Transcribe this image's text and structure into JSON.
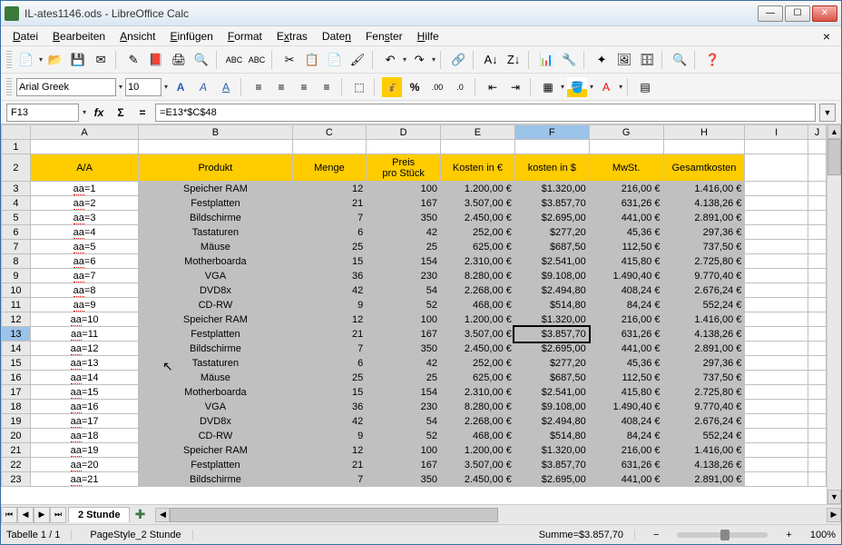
{
  "window": {
    "title": "IL-ates1146.ods - LibreOffice Calc"
  },
  "menus": [
    "Datei",
    "Bearbeiten",
    "Ansicht",
    "Einfügen",
    "Format",
    "Extras",
    "Daten",
    "Fenster",
    "Hilfe"
  ],
  "format": {
    "font": "Arial Greek",
    "size": "10"
  },
  "formula": {
    "cellref": "F13",
    "content": "=E13*$C$48"
  },
  "columns": {
    "labels": [
      "A",
      "B",
      "C",
      "D",
      "E",
      "F",
      "G",
      "H",
      "I",
      "J"
    ],
    "widths": [
      120,
      170,
      82,
      82,
      82,
      82,
      82,
      90,
      70,
      20
    ],
    "selected": "F"
  },
  "header_row": {
    "aa": "A/A",
    "produkt": "Produkt",
    "menge": "Menge",
    "preis1": "Preis",
    "preis2": "pro Stück",
    "kosten_eur": "Kosten in €",
    "kosten_usd": "kosten in $",
    "mwst": "MwSt.",
    "gesamt": "Gesamtkosten"
  },
  "selected_row": 13,
  "rows": [
    {
      "n": 3,
      "aa": "aa=1",
      "p": "Speicher RAM",
      "m": "12",
      "pp": "100",
      "ke": "1.200,00 €",
      "ku": "$1.320,00",
      "mw": "216,00 €",
      "g": "1.416,00 €"
    },
    {
      "n": 4,
      "aa": "aa=2",
      "p": "Festplatten",
      "m": "21",
      "pp": "167",
      "ke": "3.507,00 €",
      "ku": "$3.857,70",
      "mw": "631,26 €",
      "g": "4.138,26 €"
    },
    {
      "n": 5,
      "aa": "aa=3",
      "p": "Bildschirme",
      "m": "7",
      "pp": "350",
      "ke": "2.450,00 €",
      "ku": "$2.695,00",
      "mw": "441,00 €",
      "g": "2.891,00 €"
    },
    {
      "n": 6,
      "aa": "aa=4",
      "p": "Tastaturen",
      "m": "6",
      "pp": "42",
      "ke": "252,00 €",
      "ku": "$277,20",
      "mw": "45,36 €",
      "g": "297,36 €"
    },
    {
      "n": 7,
      "aa": "aa=5",
      "p": "Mäuse",
      "m": "25",
      "pp": "25",
      "ke": "625,00 €",
      "ku": "$687,50",
      "mw": "112,50 €",
      "g": "737,50 €"
    },
    {
      "n": 8,
      "aa": "aa=6",
      "p": "Motherboarda",
      "m": "15",
      "pp": "154",
      "ke": "2.310,00 €",
      "ku": "$2.541,00",
      "mw": "415,80 €",
      "g": "2.725,80 €"
    },
    {
      "n": 9,
      "aa": "aa=7",
      "p": "VGA",
      "m": "36",
      "pp": "230",
      "ke": "8.280,00 €",
      "ku": "$9.108,00",
      "mw": "1.490,40 €",
      "g": "9.770,40 €"
    },
    {
      "n": 10,
      "aa": "aa=8",
      "p": "DVD8x",
      "m": "42",
      "pp": "54",
      "ke": "2.268,00 €",
      "ku": "$2.494,80",
      "mw": "408,24 €",
      "g": "2.676,24 €"
    },
    {
      "n": 11,
      "aa": "aa=9",
      "p": "CD-RW",
      "m": "9",
      "pp": "52",
      "ke": "468,00 €",
      "ku": "$514,80",
      "mw": "84,24 €",
      "g": "552,24 €"
    },
    {
      "n": 12,
      "aa": "aa=10",
      "p": "Speicher RAM",
      "m": "12",
      "pp": "100",
      "ke": "1.200,00 €",
      "ku": "$1.320,00",
      "mw": "216,00 €",
      "g": "1.416,00 €"
    },
    {
      "n": 13,
      "aa": "aa=11",
      "p": "Festplatten",
      "m": "21",
      "pp": "167",
      "ke": "3.507,00 €",
      "ku": "$3.857,70",
      "mw": "631,26 €",
      "g": "4.138,26 €"
    },
    {
      "n": 14,
      "aa": "aa=12",
      "p": "Bildschirme",
      "m": "7",
      "pp": "350",
      "ke": "2.450,00 €",
      "ku": "$2.695,00",
      "mw": "441,00 €",
      "g": "2.891,00 €"
    },
    {
      "n": 15,
      "aa": "aa=13",
      "p": "Tastaturen",
      "m": "6",
      "pp": "42",
      "ke": "252,00 €",
      "ku": "$277,20",
      "mw": "45,36 €",
      "g": "297,36 €"
    },
    {
      "n": 16,
      "aa": "aa=14",
      "p": "Mäuse",
      "m": "25",
      "pp": "25",
      "ke": "625,00 €",
      "ku": "$687,50",
      "mw": "112,50 €",
      "g": "737,50 €"
    },
    {
      "n": 17,
      "aa": "aa=15",
      "p": "Motherboarda",
      "m": "15",
      "pp": "154",
      "ke": "2.310,00 €",
      "ku": "$2.541,00",
      "mw": "415,80 €",
      "g": "2.725,80 €"
    },
    {
      "n": 18,
      "aa": "aa=16",
      "p": "VGA",
      "m": "36",
      "pp": "230",
      "ke": "8.280,00 €",
      "ku": "$9.108,00",
      "mw": "1.490,40 €",
      "g": "9.770,40 €"
    },
    {
      "n": 19,
      "aa": "aa=17",
      "p": "DVD8x",
      "m": "42",
      "pp": "54",
      "ke": "2.268,00 €",
      "ku": "$2.494,80",
      "mw": "408,24 €",
      "g": "2.676,24 €"
    },
    {
      "n": 20,
      "aa": "aa=18",
      "p": "CD-RW",
      "m": "9",
      "pp": "52",
      "ke": "468,00 €",
      "ku": "$514,80",
      "mw": "84,24 €",
      "g": "552,24 €"
    },
    {
      "n": 21,
      "aa": "aa=19",
      "p": "Speicher RAM",
      "m": "12",
      "pp": "100",
      "ke": "1.200,00 €",
      "ku": "$1.320,00",
      "mw": "216,00 €",
      "g": "1.416,00 €"
    },
    {
      "n": 22,
      "aa": "aa=20",
      "p": "Festplatten",
      "m": "21",
      "pp": "167",
      "ke": "3.507,00 €",
      "ku": "$3.857,70",
      "mw": "631,26 €",
      "g": "4.138,26 €"
    },
    {
      "n": 23,
      "aa": "aa=21",
      "p": "Bildschirme",
      "m": "7",
      "pp": "350",
      "ke": "2.450,00 €",
      "ku": "$2.695,00",
      "mw": "441,00 €",
      "g": "2.891,00 €"
    }
  ],
  "tabs": {
    "active": "2 Stunde"
  },
  "status": {
    "sheet": "Tabelle 1 / 1",
    "pagestyle": "PageStyle_2 Stunde",
    "sum": "Summe=$3.857,70",
    "zoom": "100%"
  },
  "colors": {
    "header_bg": "#ffcc00",
    "data_bg": "#c0c0c0",
    "selected_col": "#9cc3e8"
  }
}
